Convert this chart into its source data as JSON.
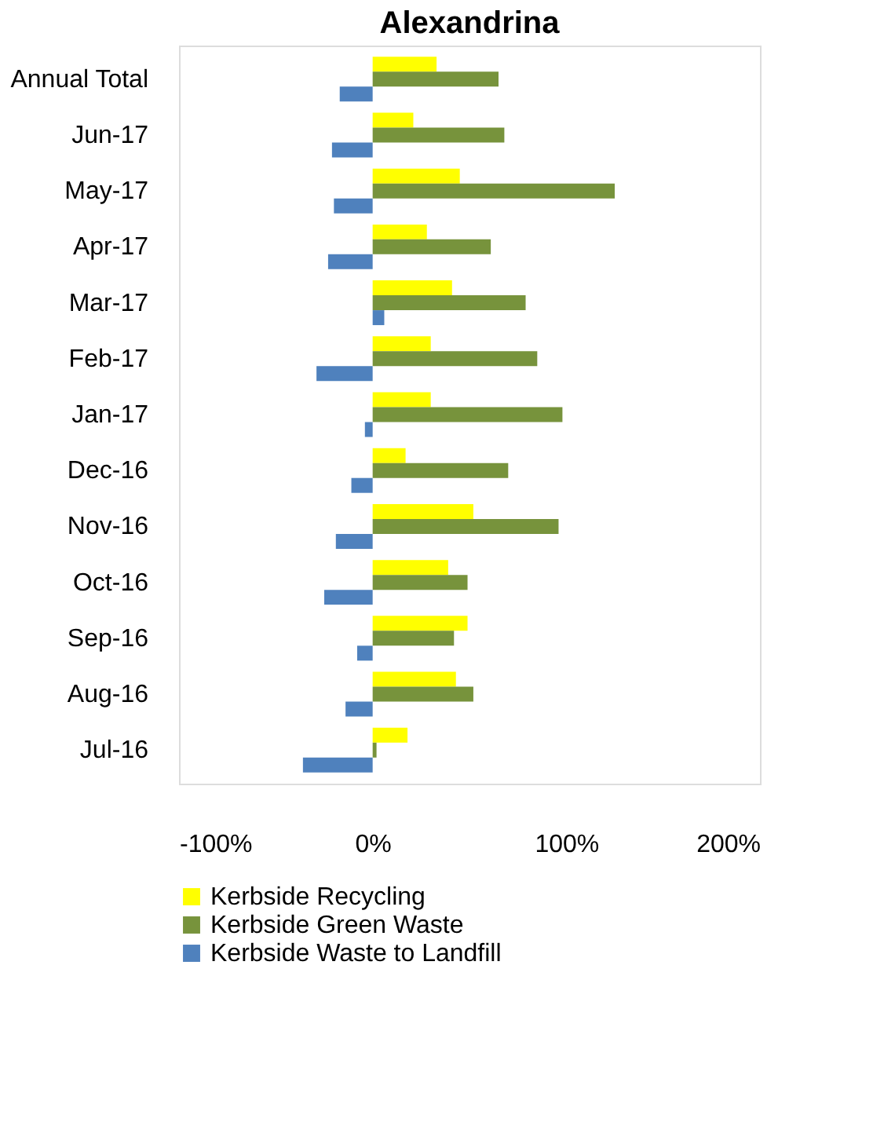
{
  "chart_data": {
    "type": "bar",
    "orientation": "horizontal",
    "title": "Alexandrina",
    "categories": [
      "Annual Total",
      "Jun-17",
      "May-17",
      "Apr-17",
      "Mar-17",
      "Feb-17",
      "Jan-17",
      "Dec-16",
      "Nov-16",
      "Oct-16",
      "Sep-16",
      "Aug-16",
      "Jul-16"
    ],
    "series": [
      {
        "name": "Kerbside Recycling",
        "color": "#ffff00",
        "values": [
          33,
          21,
          45,
          28,
          41,
          30,
          30,
          17,
          52,
          39,
          49,
          43,
          18
        ]
      },
      {
        "name": "Kerbside Green Waste",
        "color": "#77933c",
        "values": [
          65,
          68,
          125,
          61,
          79,
          85,
          98,
          70,
          96,
          49,
          42,
          52,
          2
        ]
      },
      {
        "name": "Kerbside Waste to Landfill",
        "color": "#4f81bd",
        "values": [
          -17,
          -21,
          -20,
          -23,
          6,
          -29,
          -4,
          -11,
          -19,
          -25,
          -8,
          -14,
          -36
        ]
      }
    ],
    "xlim": [
      -100,
      200
    ],
    "xticks": [
      {
        "value": -100,
        "label": "-100%"
      },
      {
        "value": 0,
        "label": "0%"
      },
      {
        "value": 100,
        "label": "100%"
      },
      {
        "value": 200,
        "label": "200%"
      }
    ],
    "grid": false,
    "legend": "bottom"
  }
}
